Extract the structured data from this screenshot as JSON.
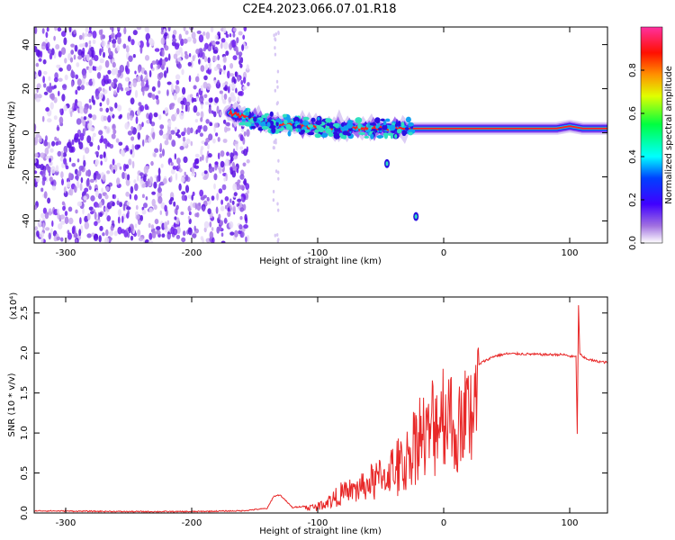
{
  "title": "C2E4.2023.066.07.01.R18",
  "chart_data": [
    {
      "type": "heatmap",
      "xlabel": "Height of straight line (km)",
      "ylabel": "Frequency (Hz)",
      "xlim": [
        -325,
        130
      ],
      "ylim": [
        -50,
        48
      ],
      "xticks": [
        -300,
        -200,
        -100,
        0,
        100
      ],
      "yticks": [
        -40,
        -20,
        0,
        20,
        40
      ],
      "colorbar": {
        "label": "Normalized spectral amplitude",
        "range": [
          0.0,
          1.0
        ],
        "ticks": [
          "0.0",
          "0.2",
          "0.4",
          "0.6",
          "0.8"
        ],
        "colormap": "rainbow"
      },
      "noise_region_x": [
        -325,
        -155
      ],
      "signal_trace": {
        "x": [
          -170,
          -150,
          -130,
          -110,
          -90,
          -70,
          -50,
          -30,
          -10,
          10,
          50,
          90,
          100,
          110,
          130
        ],
        "y": [
          9,
          6,
          4,
          3,
          2,
          2,
          2,
          2,
          2,
          2,
          2,
          2,
          3,
          2,
          2
        ],
        "peak_amplitude": [
          0.7,
          0.7,
          0.5,
          0.5,
          0.5,
          0.5,
          0.6,
          0.9,
          0.9,
          0.9,
          0.9,
          0.9,
          0.8,
          0.9,
          0.9
        ]
      },
      "outliers": [
        {
          "x": -45,
          "y": -14
        },
        {
          "x": -22,
          "y": -38
        }
      ]
    },
    {
      "type": "line",
      "ylabel": "SNR (10 * v/v)",
      "xlabel": "Height of straight line (km)",
      "y_multiplier": "(x10⁴)",
      "xlim": [
        -325,
        130
      ],
      "ylim": [
        0,
        2.7
      ],
      "xticks": [
        -300,
        -200,
        -100,
        0,
        100
      ],
      "yticks": [
        "0.0",
        "0.5",
        "1.0",
        "1.5",
        "2.0",
        "2.5"
      ],
      "color": "#e82828",
      "series": [
        {
          "x": [
            -325,
            -250,
            -200,
            -160,
            -140,
            -135,
            -130,
            -120,
            -110,
            -100,
            -90,
            -80,
            -70,
            -60,
            -50,
            -40,
            -30,
            -25,
            -20,
            -15,
            -10,
            -5,
            0,
            5,
            10,
            15,
            20,
            25,
            30,
            40,
            50,
            60,
            80,
            95,
            100,
            105,
            106,
            107,
            108,
            110,
            115,
            120,
            130
          ],
          "y": [
            0.02,
            0.01,
            0.01,
            0.02,
            0.05,
            0.2,
            0.22,
            0.06,
            0.08,
            0.1,
            0.2,
            0.3,
            0.35,
            0.45,
            0.55,
            0.65,
            0.8,
            1.0,
            1.35,
            1.1,
            1.3,
            1.45,
            1.55,
            1.6,
            1.15,
            1.5,
            1.65,
            1.8,
            1.88,
            1.96,
            1.99,
            1.99,
            1.98,
            1.98,
            1.96,
            1.95,
            1.0,
            2.6,
            2.0,
            1.95,
            1.92,
            1.9,
            1.88
          ]
        }
      ]
    }
  ]
}
